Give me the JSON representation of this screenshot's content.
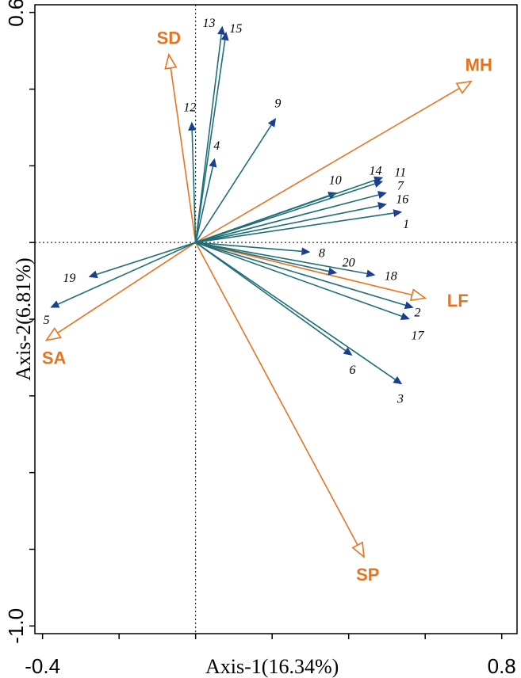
{
  "chart_data": {
    "type": "biplot",
    "xlabel": "Axis-1(16.34%)",
    "ylabel": "Axis-2(6.81%)",
    "xlim": [
      -0.42,
      0.84
    ],
    "ylim": [
      -1.02,
      0.62
    ],
    "x_ticks": [
      -0.4,
      -0.2,
      0.0,
      0.2,
      0.4,
      0.6,
      0.8
    ],
    "y_ticks": [
      -1.0,
      -0.8,
      -0.6,
      -0.4,
      -0.2,
      0.0,
      0.2,
      0.4,
      0.6
    ],
    "x_tick_labels": [
      {
        "value": -0.4,
        "label": "-0.4"
      },
      {
        "value": 0.8,
        "label": "0.8"
      }
    ],
    "y_tick_labels": [
      {
        "value": 0.6,
        "label": "0.6"
      },
      {
        "value": -1.0,
        "label": "-1.0"
      }
    ],
    "species": [
      {
        "label": "1",
        "x": 0.54,
        "y": 0.08,
        "lx": 0.55,
        "ly": 0.045
      },
      {
        "label": "2",
        "x": 0.57,
        "y": -0.17,
        "lx": 0.58,
        "ly": -0.185
      },
      {
        "label": "3",
        "x": 0.54,
        "y": -0.37,
        "lx": 0.535,
        "ly": -0.41
      },
      {
        "label": "4",
        "x": 0.05,
        "y": 0.22,
        "lx": 0.055,
        "ly": 0.25
      },
      {
        "label": "5",
        "x": -0.38,
        "y": -0.17,
        "lx": -0.39,
        "ly": -0.205
      },
      {
        "label": "6",
        "x": 0.41,
        "y": -0.295,
        "lx": 0.41,
        "ly": -0.335
      },
      {
        "label": "7",
        "x": 0.5,
        "y": 0.13,
        "lx": 0.535,
        "ly": 0.145
      },
      {
        "label": "8",
        "x": 0.3,
        "y": -0.025,
        "lx": 0.33,
        "ly": -0.03
      },
      {
        "label": "9",
        "x": 0.21,
        "y": 0.325,
        "lx": 0.215,
        "ly": 0.36
      },
      {
        "label": "10",
        "x": 0.37,
        "y": 0.13,
        "lx": 0.365,
        "ly": 0.16
      },
      {
        "label": "11",
        "x": 0.49,
        "y": 0.17,
        "lx": 0.535,
        "ly": 0.18
      },
      {
        "label": "12",
        "x": -0.01,
        "y": 0.315,
        "lx": -0.015,
        "ly": 0.35
      },
      {
        "label": "13",
        "x": 0.07,
        "y": 0.565,
        "lx": 0.035,
        "ly": 0.57
      },
      {
        "label": "14",
        "x": 0.49,
        "y": 0.16,
        "lx": 0.47,
        "ly": 0.185
      },
      {
        "label": "15",
        "x": 0.08,
        "y": 0.55,
        "lx": 0.105,
        "ly": 0.555
      },
      {
        "label": "16",
        "x": 0.5,
        "y": 0.1,
        "lx": 0.54,
        "ly": 0.11
      },
      {
        "label": "17",
        "x": 0.56,
        "y": -0.2,
        "lx": 0.58,
        "ly": -0.245
      },
      {
        "label": "18",
        "x": 0.47,
        "y": -0.085,
        "lx": 0.51,
        "ly": -0.09
      },
      {
        "label": "19",
        "x": -0.28,
        "y": -0.09,
        "lx": -0.33,
        "ly": -0.095
      },
      {
        "label": "20",
        "x": 0.37,
        "y": -0.08,
        "lx": 0.4,
        "ly": -0.055
      }
    ],
    "environment": [
      {
        "label": "SD",
        "x": -0.07,
        "y": 0.49,
        "lx": -0.07,
        "ly": 0.53
      },
      {
        "label": "MH",
        "x": 0.72,
        "y": 0.42,
        "lx": 0.74,
        "ly": 0.46
      },
      {
        "label": "LF",
        "x": 0.6,
        "y": -0.145,
        "lx": 0.685,
        "ly": -0.155
      },
      {
        "label": "SP",
        "x": 0.44,
        "y": -0.82,
        "lx": 0.45,
        "ly": -0.87
      },
      {
        "label": "SA",
        "x": -0.39,
        "y": -0.255,
        "lx": -0.37,
        "ly": -0.305
      }
    ]
  }
}
